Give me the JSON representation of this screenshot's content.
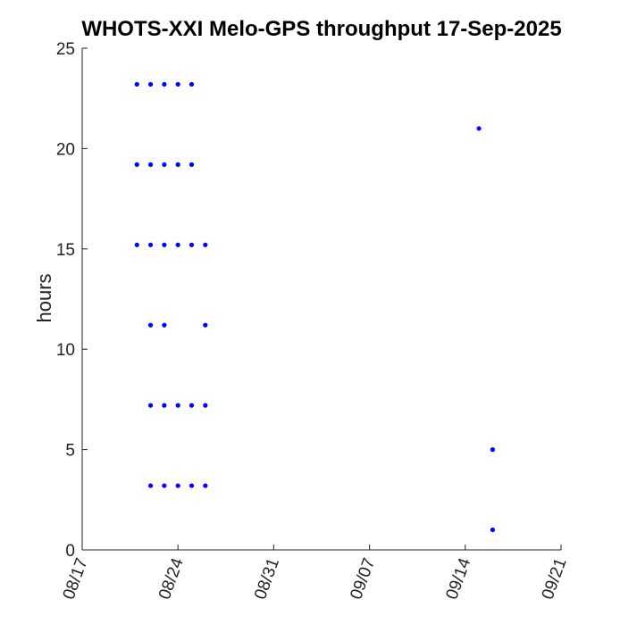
{
  "chart_data": {
    "type": "scatter",
    "title": "WHOTS-XXI Melo-GPS throughput 17-Sep-2025",
    "xlabel": "",
    "ylabel": "hours",
    "xlim": [
      "2025-08-17",
      "2025-09-21"
    ],
    "ylim": [
      0,
      25
    ],
    "xticks": [
      "2025-08-17",
      "2025-08-24",
      "2025-08-31",
      "2025-09-07",
      "2025-09-14",
      "2025-09-21"
    ],
    "xtick_labels": [
      "08/17",
      "08/24",
      "08/31",
      "09/07",
      "09/14",
      "09/21"
    ],
    "yticks": [
      0,
      5,
      10,
      15,
      20,
      25
    ],
    "ytick_labels": [
      "0",
      "5",
      "10",
      "15",
      "20",
      "25"
    ],
    "grid": false,
    "marker_color": "#0000ff",
    "series": [
      {
        "points": [
          {
            "x": "2025-08-21",
            "y": 23.2
          },
          {
            "x": "2025-08-22",
            "y": 23.2
          },
          {
            "x": "2025-08-23",
            "y": 23.2
          },
          {
            "x": "2025-08-24",
            "y": 23.2
          },
          {
            "x": "2025-08-25",
            "y": 23.2
          },
          {
            "x": "2025-08-21",
            "y": 19.2
          },
          {
            "x": "2025-08-22",
            "y": 19.2
          },
          {
            "x": "2025-08-23",
            "y": 19.2
          },
          {
            "x": "2025-08-24",
            "y": 19.2
          },
          {
            "x": "2025-08-25",
            "y": 19.2
          },
          {
            "x": "2025-08-21",
            "y": 15.2
          },
          {
            "x": "2025-08-22",
            "y": 15.2
          },
          {
            "x": "2025-08-23",
            "y": 15.2
          },
          {
            "x": "2025-08-24",
            "y": 15.2
          },
          {
            "x": "2025-08-25",
            "y": 15.2
          },
          {
            "x": "2025-08-26",
            "y": 15.2
          },
          {
            "x": "2025-08-22",
            "y": 11.2
          },
          {
            "x": "2025-08-23",
            "y": 11.2
          },
          {
            "x": "2025-08-26",
            "y": 11.2
          },
          {
            "x": "2025-08-22",
            "y": 7.2
          },
          {
            "x": "2025-08-23",
            "y": 7.2
          },
          {
            "x": "2025-08-24",
            "y": 7.2
          },
          {
            "x": "2025-08-25",
            "y": 7.2
          },
          {
            "x": "2025-08-26",
            "y": 7.2
          },
          {
            "x": "2025-08-22",
            "y": 3.2
          },
          {
            "x": "2025-08-23",
            "y": 3.2
          },
          {
            "x": "2025-08-24",
            "y": 3.2
          },
          {
            "x": "2025-08-25",
            "y": 3.2
          },
          {
            "x": "2025-08-26",
            "y": 3.2
          },
          {
            "x": "2025-09-15",
            "y": 21.0
          },
          {
            "x": "2025-09-16",
            "y": 5.0
          },
          {
            "x": "2025-09-16",
            "y": 1.0
          }
        ]
      }
    ]
  }
}
